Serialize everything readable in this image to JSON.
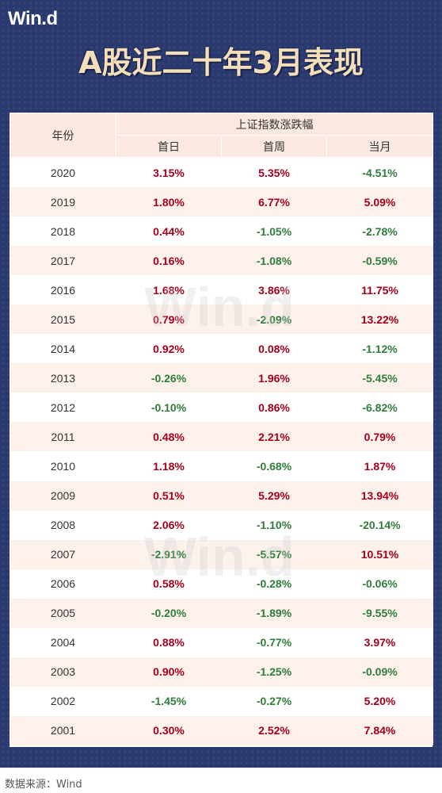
{
  "header": {
    "logo": "Win.d",
    "title": "A股近二十年3月表现"
  },
  "table": {
    "col_year": "年份",
    "group_header": "上证指数涨跌幅",
    "col_day1": "首日",
    "col_week1": "首周",
    "col_month": "当月",
    "rows": [
      {
        "year": "2020",
        "day1": "3.15%",
        "week1": "5.35%",
        "month": "-4.51%"
      },
      {
        "year": "2019",
        "day1": "1.80%",
        "week1": "6.77%",
        "month": "5.09%"
      },
      {
        "year": "2018",
        "day1": "0.44%",
        "week1": "-1.05%",
        "month": "-2.78%"
      },
      {
        "year": "2017",
        "day1": "0.16%",
        "week1": "-1.08%",
        "month": "-0.59%"
      },
      {
        "year": "2016",
        "day1": "1.68%",
        "week1": "3.86%",
        "month": "11.75%"
      },
      {
        "year": "2015",
        "day1": "0.79%",
        "week1": "-2.09%",
        "month": "13.22%"
      },
      {
        "year": "2014",
        "day1": "0.92%",
        "week1": "0.08%",
        "month": "-1.12%"
      },
      {
        "year": "2013",
        "day1": "-0.26%",
        "week1": "1.96%",
        "month": "-5.45%"
      },
      {
        "year": "2012",
        "day1": "-0.10%",
        "week1": "0.86%",
        "month": "-6.82%"
      },
      {
        "year": "2011",
        "day1": "0.48%",
        "week1": "2.21%",
        "month": "0.79%"
      },
      {
        "year": "2010",
        "day1": "1.18%",
        "week1": "-0.68%",
        "month": "1.87%"
      },
      {
        "year": "2009",
        "day1": "0.51%",
        "week1": "5.29%",
        "month": "13.94%"
      },
      {
        "year": "2008",
        "day1": "2.06%",
        "week1": "-1.10%",
        "month": "-20.14%"
      },
      {
        "year": "2007",
        "day1": "-2.91%",
        "week1": "-5.57%",
        "month": "10.51%"
      },
      {
        "year": "2006",
        "day1": "0.58%",
        "week1": "-0.28%",
        "month": "-0.06%"
      },
      {
        "year": "2005",
        "day1": "-0.20%",
        "week1": "-1.89%",
        "month": "-9.55%"
      },
      {
        "year": "2004",
        "day1": "0.88%",
        "week1": "-0.77%",
        "month": "3.97%"
      },
      {
        "year": "2003",
        "day1": "0.90%",
        "week1": "-1.25%",
        "month": "-0.09%"
      },
      {
        "year": "2002",
        "day1": "-1.45%",
        "week1": "-0.27%",
        "month": "5.20%"
      },
      {
        "year": "2001",
        "day1": "0.30%",
        "week1": "2.52%",
        "month": "7.84%"
      }
    ]
  },
  "colors": {
    "positive": "#a3001c",
    "negative": "#2f7d3a",
    "banner": "#2b3a6e",
    "title": "#f5dfb8"
  },
  "watermark": "Win.d",
  "footer": {
    "source": "数据来源：Wind"
  }
}
